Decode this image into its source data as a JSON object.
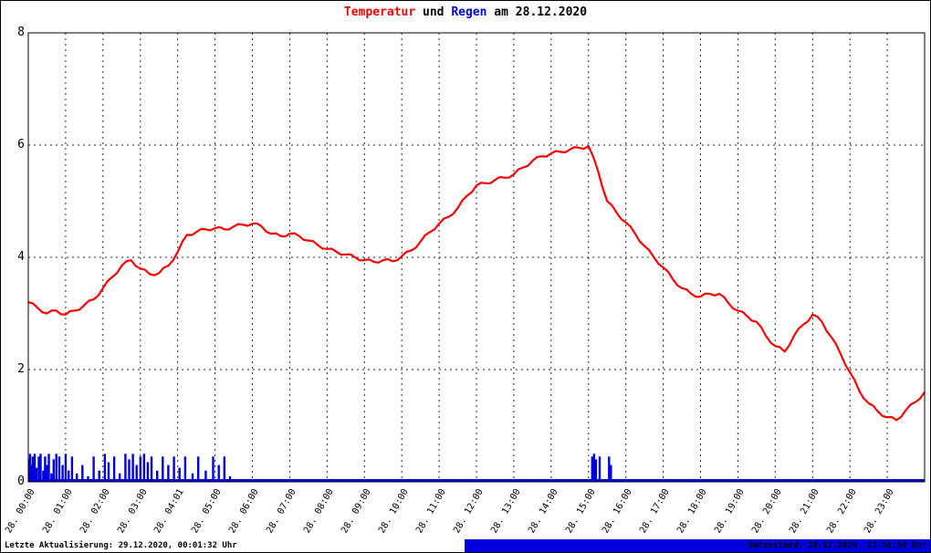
{
  "title": {
    "temperatur": "Temperatur",
    "und": " und ",
    "regen": "Regen",
    "date": " am 28.12.2020"
  },
  "footer": {
    "left": "Letzte Aktualisierung: 29.12.2020, 00:01:32 Uhr",
    "right": "Datenstand: 28.12.2020, 23:58:50 Uhr"
  },
  "colors": {
    "temperature": "#ff0000",
    "rain": "#0000dd",
    "title_rain": "#0000ff",
    "grid": "#000000",
    "footer_bar": "#0000dd"
  },
  "chart_data": {
    "type": "line",
    "title": "Temperatur und Regen am 28.12.2020",
    "xlabel": "",
    "ylabel": "",
    "ylim": [
      0,
      8
    ],
    "yticks": [
      0,
      2,
      4,
      6,
      8
    ],
    "grid": "dashed",
    "x_unit": "hours",
    "x_range_hours": [
      0,
      24
    ],
    "x_start_hour": 0,
    "x_step_hour": 0.25,
    "xtick_labels": [
      "28. 00:00",
      "28. 01:00",
      "28. 02:00",
      "28. 03:00",
      "28. 04:01",
      "28. 05:00",
      "28. 06:00",
      "28. 07:00",
      "28. 08:00",
      "28. 09:00",
      "28. 10:00",
      "28. 11:00",
      "28. 12:00",
      "28. 13:00",
      "28. 14:00",
      "28. 15:00",
      "28. 16:00",
      "28. 17:00",
      "28. 18:00",
      "28. 19:00",
      "28. 20:00",
      "28. 21:00",
      "28. 22:00",
      "28. 23:00"
    ],
    "series": [
      {
        "name": "Temperatur",
        "type": "line",
        "color": "#ff0000",
        "values": [
          3.2,
          3.1,
          3.0,
          3.05,
          2.98,
          3.05,
          3.15,
          3.25,
          3.45,
          3.65,
          3.85,
          3.95,
          3.8,
          3.7,
          3.72,
          3.85,
          4.1,
          4.4,
          4.45,
          4.5,
          4.52,
          4.5,
          4.55,
          4.58,
          4.6,
          4.55,
          4.42,
          4.38,
          4.42,
          4.38,
          4.3,
          4.22,
          4.15,
          4.1,
          4.05,
          4.0,
          3.95,
          3.92,
          3.95,
          3.93,
          4.02,
          4.12,
          4.28,
          4.45,
          4.6,
          4.72,
          4.88,
          5.1,
          5.28,
          5.32,
          5.38,
          5.42,
          5.48,
          5.6,
          5.72,
          5.8,
          5.85,
          5.88,
          5.92,
          5.95,
          5.98,
          5.55,
          5.0,
          4.8,
          4.62,
          4.42,
          4.2,
          4.0,
          3.82,
          3.62,
          3.45,
          3.35,
          3.3,
          3.35,
          3.35,
          3.18,
          3.05,
          2.95,
          2.85,
          2.6,
          2.42,
          2.32,
          2.6,
          2.8,
          2.98,
          2.85,
          2.58,
          2.28,
          1.95,
          1.62,
          1.4,
          1.25,
          1.15,
          1.1,
          1.28,
          1.42,
          1.6
        ]
      },
      {
        "name": "Regen",
        "type": "spikes",
        "color": "#0000dd",
        "spikes": [
          [
            0.02,
            0.4
          ],
          [
            0.05,
            0.5
          ],
          [
            0.08,
            0.3
          ],
          [
            0.12,
            0.45
          ],
          [
            0.17,
            0.5
          ],
          [
            0.22,
            0.25
          ],
          [
            0.28,
            0.45
          ],
          [
            0.33,
            0.5
          ],
          [
            0.4,
            0.2
          ],
          [
            0.45,
            0.45
          ],
          [
            0.5,
            0.3
          ],
          [
            0.55,
            0.5
          ],
          [
            0.62,
            0.15
          ],
          [
            0.68,
            0.4
          ],
          [
            0.75,
            0.5
          ],
          [
            0.83,
            0.45
          ],
          [
            0.92,
            0.3
          ],
          [
            1.0,
            0.5
          ],
          [
            1.08,
            0.2
          ],
          [
            1.17,
            0.45
          ],
          [
            1.3,
            0.15
          ],
          [
            1.45,
            0.3
          ],
          [
            1.6,
            0.1
          ],
          [
            1.75,
            0.45
          ],
          [
            1.9,
            0.2
          ],
          [
            2.05,
            0.5
          ],
          [
            2.15,
            0.35
          ],
          [
            2.3,
            0.45
          ],
          [
            2.45,
            0.15
          ],
          [
            2.6,
            0.5
          ],
          [
            2.7,
            0.4
          ],
          [
            2.8,
            0.5
          ],
          [
            2.9,
            0.3
          ],
          [
            3.0,
            0.45
          ],
          [
            3.1,
            0.5
          ],
          [
            3.2,
            0.35
          ],
          [
            3.3,
            0.45
          ],
          [
            3.45,
            0.2
          ],
          [
            3.6,
            0.45
          ],
          [
            3.75,
            0.3
          ],
          [
            3.9,
            0.45
          ],
          [
            4.05,
            0.25
          ],
          [
            4.2,
            0.45
          ],
          [
            4.4,
            0.15
          ],
          [
            4.55,
            0.45
          ],
          [
            4.75,
            0.2
          ],
          [
            4.95,
            0.45
          ],
          [
            5.1,
            0.3
          ],
          [
            5.25,
            0.45
          ],
          [
            5.4,
            0.1
          ],
          [
            15.1,
            0.45
          ],
          [
            15.15,
            0.5
          ],
          [
            15.2,
            0.4
          ],
          [
            15.3,
            0.45
          ],
          [
            15.55,
            0.45
          ],
          [
            15.6,
            0.3
          ]
        ]
      }
    ]
  }
}
